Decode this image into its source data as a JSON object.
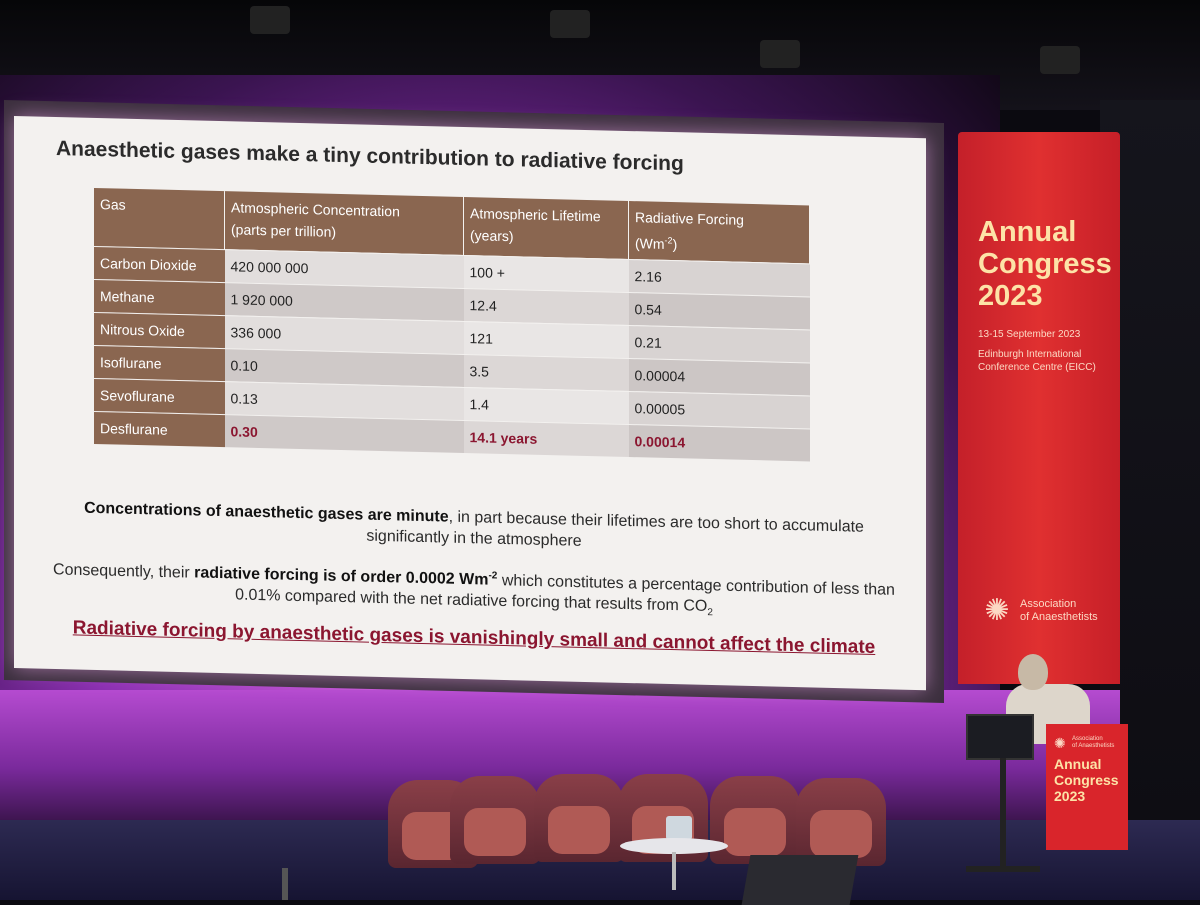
{
  "slide": {
    "title": "Anaesthetic gases make a tiny contribution to radiative forcing",
    "table": {
      "headers": [
        {
          "line1": "Gas",
          "line2": ""
        },
        {
          "line1": "Atmospheric Concentration",
          "line2": "(parts per trillion)"
        },
        {
          "line1": "Atmospheric Lifetime",
          "line2": "(years)"
        },
        {
          "line1": "Radiative Forcing",
          "line2": "(Wm-2)"
        }
      ],
      "rows": [
        {
          "gas": "Carbon Dioxide",
          "concentration": "420 000 000",
          "lifetime": "100 +",
          "forcing": "2.16"
        },
        {
          "gas": "Methane",
          "concentration": "1 920 000",
          "lifetime": "12.4",
          "forcing": "0.54"
        },
        {
          "gas": "Nitrous Oxide",
          "concentration": "336 000",
          "lifetime": "121",
          "forcing": "0.21"
        },
        {
          "gas": "Isoflurane",
          "concentration": "0.10",
          "lifetime": "3.5",
          "forcing": "0.00004"
        },
        {
          "gas": "Sevoflurane",
          "concentration": "0.13",
          "lifetime": "1.4",
          "forcing": "0.00005"
        },
        {
          "gas": "Desflurane",
          "concentration": "0.30",
          "lifetime": "14.1 years",
          "forcing": "0.00014"
        }
      ]
    },
    "para1": {
      "bold": "Concentrations of anaesthetic gases are minute",
      "rest": ", in part because their lifetimes are too short to accumulate significantly in the atmosphere"
    },
    "para2": {
      "lead": "Consequently, their ",
      "bold": "radiative forcing is of order 0.0002 Wm",
      "bold_sup": "-2",
      "rest": " which constitutes a percentage contribution of less than 0.01% compared with the net radiative forcing that results from CO",
      "sub": "2"
    },
    "closing": "Radiative forcing by anaesthetic gases is vanishingly small and cannot affect the climate"
  },
  "banner": {
    "title_line1": "Annual",
    "title_line2": "Congress",
    "title_line3": "2023",
    "dates": "13-15 September 2023",
    "venue_line1": "Edinburgh International",
    "venue_line2": "Conference Centre (EICC)",
    "org_line1": "Association",
    "org_line2": "of Anaesthetists"
  },
  "lectern": {
    "org_line1": "Association",
    "org_line2": "of Anaesthetists",
    "title_line1": "Annual",
    "title_line2": "Congress",
    "title_line3": "2023"
  },
  "colors": {
    "table_header": "#8a6650",
    "accent_red": "#8b1630",
    "banner_red": "#d9252b",
    "stage_purple": "#b54bd0"
  }
}
